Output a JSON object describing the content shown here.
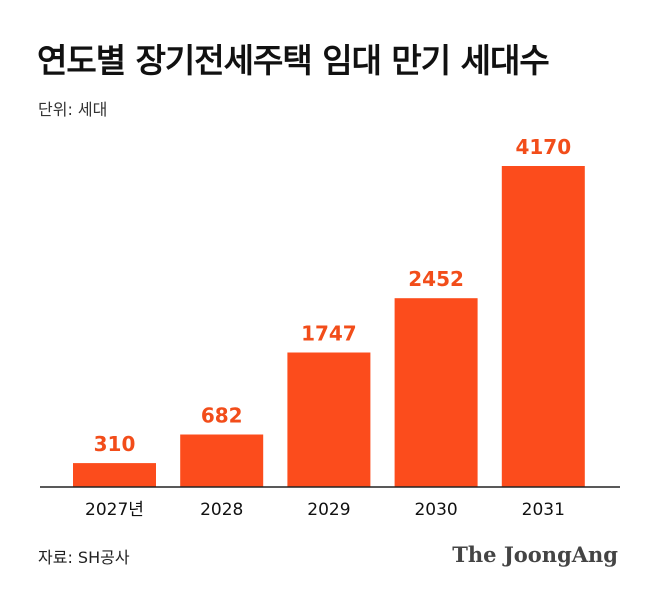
{
  "title": "연도별 장기전세주택 임대 만기 세대수",
  "unit_label": "단위: 세대",
  "source": "자료: SH공사",
  "brand": "The JoongAng",
  "colors": {
    "bar": "#fc4c1c",
    "label": "#f24d1a",
    "axis": "#222222",
    "text": "#111111"
  },
  "chart_data": {
    "type": "bar",
    "categories": [
      "2027년",
      "2028",
      "2029",
      "2030",
      "2031"
    ],
    "values": [
      310,
      682,
      1747,
      2452,
      4170
    ],
    "title": "연도별 장기전세주택 임대 만기 세대수",
    "ylabel": "단위: 세대",
    "ylim": [
      0,
      4170
    ],
    "grid": false,
    "data_labels": true
  }
}
